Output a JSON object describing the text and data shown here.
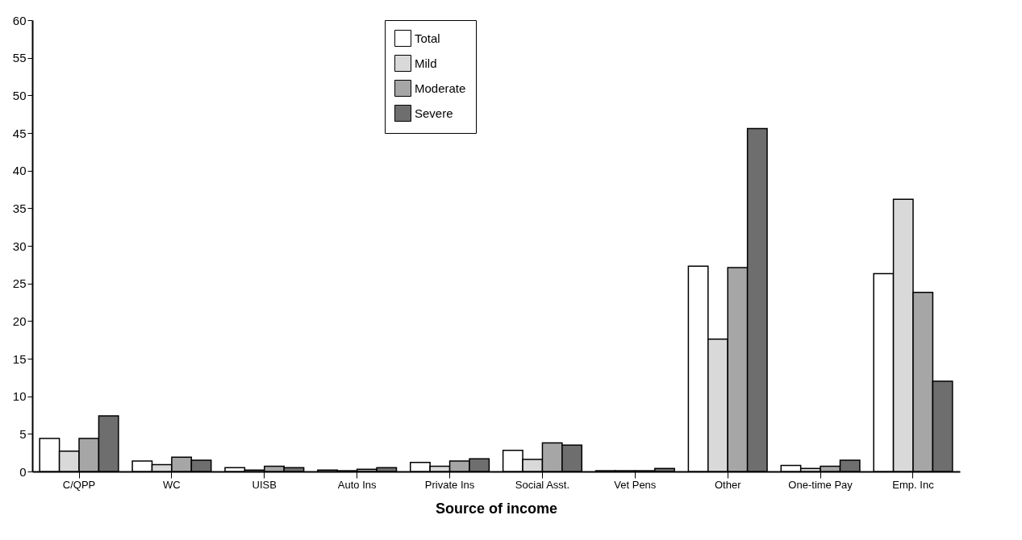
{
  "chart_data": {
    "type": "bar",
    "xlabel": "Source of income",
    "categories": [
      "C/QPP",
      "WC",
      "UISB",
      "Auto Ins",
      "Private Ins",
      "Social Asst.",
      "Vet Pens",
      "Other",
      "One-time Pay",
      "Emp. Inc"
    ],
    "series": [
      {
        "name": "Total",
        "color": "#ffffff",
        "values": [
          4.4,
          1.4,
          0.5,
          0.2,
          1.2,
          2.8,
          0.1,
          27.3,
          0.8,
          26.3
        ]
      },
      {
        "name": "Mild",
        "color": "#d9d9d9",
        "values": [
          2.7,
          0.9,
          0.2,
          0.1,
          0.7,
          1.6,
          0.1,
          17.6,
          0.4,
          36.2
        ]
      },
      {
        "name": "Moderate",
        "color": "#a6a6a6",
        "values": [
          4.4,
          1.9,
          0.7,
          0.3,
          1.4,
          3.8,
          0.1,
          27.1,
          0.7,
          23.8
        ]
      },
      {
        "name": "Severe",
        "color": "#6e6e6e",
        "values": [
          7.4,
          1.5,
          0.5,
          0.5,
          1.7,
          3.5,
          0.4,
          45.6,
          1.5,
          12.0
        ]
      }
    ],
    "ylim": [
      0,
      60
    ],
    "yticks": [
      0,
      5,
      10,
      15,
      20,
      25,
      30,
      35,
      40,
      45,
      50,
      55,
      60
    ],
    "grid": false,
    "legend": "top"
  }
}
